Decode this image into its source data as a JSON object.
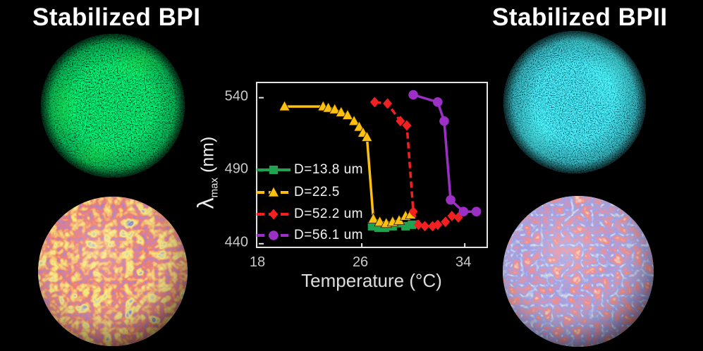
{
  "figure": {
    "background": "#000000",
    "left_panel": {
      "title": "Stabilized BPI"
    },
    "right_panel": {
      "title": "Stabilized BPII"
    }
  },
  "chart_data": {
    "type": "line",
    "title": "",
    "xlabel": "Temperature (°C)",
    "ylabel": "λmax (nm)",
    "ylabel_parts": {
      "symbol": "λ",
      "subscript": "max",
      "units": "(nm)"
    },
    "xlim": [
      18,
      35.8
    ],
    "ylim": [
      437,
      549
    ],
    "xticks": [
      18,
      26,
      34
    ],
    "yticks": [
      440,
      490,
      540
    ],
    "grid": false,
    "legend_position": "inside-left",
    "frame_color": "#e3e3e3",
    "tick_label_color": "#c9c9c9",
    "series": [
      {
        "name": "D=13.8 um",
        "color": "#1fa350",
        "marker": "square",
        "line": "solid",
        "points": [
          [
            26.8,
            452
          ],
          [
            27.3,
            451
          ],
          [
            27.8,
            451
          ],
          [
            28.4,
            452
          ],
          [
            29.4,
            452
          ],
          [
            29.9,
            453
          ]
        ]
      },
      {
        "name": "D=22.5",
        "color": "#fdc010",
        "marker": "triangle",
        "line": "solid",
        "points": [
          [
            20.0,
            534
          ],
          [
            23.0,
            534
          ],
          [
            23.4,
            533
          ],
          [
            23.9,
            532
          ],
          [
            24.4,
            530
          ],
          [
            24.9,
            528
          ],
          [
            25.4,
            524
          ],
          [
            25.8,
            520
          ],
          [
            26.1,
            516
          ],
          [
            26.4,
            513
          ],
          [
            26.9,
            457
          ],
          [
            27.4,
            455
          ],
          [
            27.9,
            454
          ],
          [
            28.4,
            455
          ],
          [
            28.9,
            456
          ],
          [
            29.4,
            459
          ],
          [
            29.8,
            460
          ]
        ]
      },
      {
        "name": "D=52.2 um",
        "color": "#f22020",
        "marker": "diamond",
        "line": "dashed",
        "points": [
          [
            27.0,
            537
          ],
          [
            28.0,
            536
          ],
          [
            29.0,
            524
          ],
          [
            29.5,
            521
          ],
          [
            30.0,
            462
          ],
          [
            30.4,
            453
          ],
          [
            30.9,
            452
          ],
          [
            31.5,
            452
          ],
          [
            31.9,
            453
          ],
          [
            32.5,
            455
          ],
          [
            33.0,
            459
          ],
          [
            33.5,
            458
          ]
        ]
      },
      {
        "name": "D=56.1 um",
        "color": "#9b2fc6",
        "marker": "circle",
        "line": "solid",
        "points": [
          [
            30.0,
            542
          ],
          [
            31.9,
            537
          ],
          [
            32.4,
            524
          ],
          [
            32.9,
            470
          ],
          [
            33.9,
            462
          ],
          [
            34.9,
            462
          ]
        ]
      }
    ]
  }
}
